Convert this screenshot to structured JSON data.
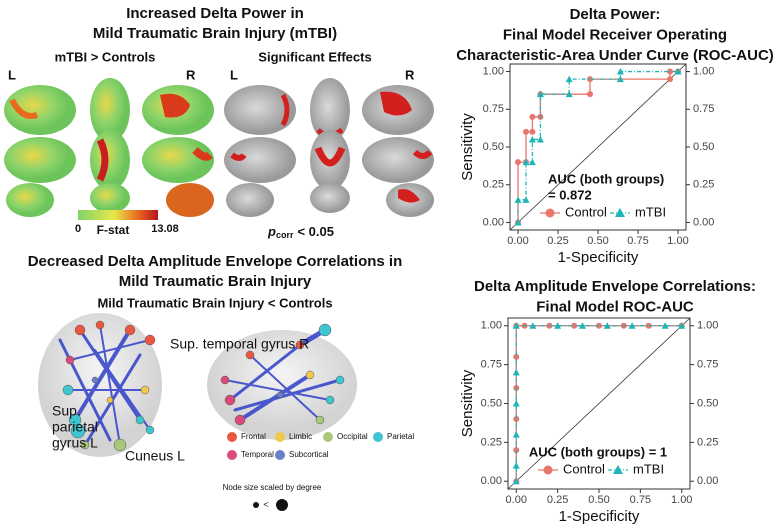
{
  "figure_a": {
    "title": [
      "Increased Delta Power in",
      "Mild Traumatic Brain Injury (mTBI)"
    ],
    "left_heading": "mTBI > Controls",
    "right_heading": "Significant Effects",
    "hemisphere_labels": [
      "L",
      "R",
      "L",
      "R"
    ],
    "colorbar": {
      "label": "F-stat",
      "min": 0,
      "max": 13.08
    },
    "threshold": {
      "symbol": "p",
      "subscript": "corr",
      "text": "< 0.05"
    }
  },
  "figure_b": {
    "title": [
      "Decreased Delta Amplitude Envelope Correlations in",
      "Mild Traumatic Brain Injury"
    ],
    "subtitle": "Mild Traumatic Brain Injury < Controls",
    "region_labels": [
      [
        "Sup. temporal gyrus R"
      ],
      [
        "Sup.",
        "parietal",
        "gyrus L"
      ],
      [
        "Cuneus L"
      ]
    ],
    "legend": [
      {
        "name": "Frontal",
        "color": "#e8573f"
      },
      {
        "name": "Limbic",
        "color": "#f0c84a"
      },
      {
        "name": "Occipital",
        "color": "#a8c97a"
      },
      {
        "name": "Parietal",
        "color": "#3fc4d0"
      },
      {
        "name": "Temporal",
        "color": "#d94a7a"
      },
      {
        "name": "Subcortical",
        "color": "#6b7fc7"
      }
    ],
    "size_note": "Node size scaled by degree",
    "size_symbol": "<"
  },
  "chart_data": [
    {
      "type": "line",
      "title": [
        "Delta Power:",
        "Final Model Receiver Operating",
        "Characteristic-Area Under Curve (ROC-AUC)"
      ],
      "xlabel": "1-Specificity",
      "ylabel": "Sensitivity",
      "annotation": [
        "AUC (both groups)",
        "= 0.872"
      ],
      "xlim": [
        -0.05,
        1.05
      ],
      "ylim": [
        -0.05,
        1.05
      ],
      "y2lim": [
        -0.05,
        1.05
      ],
      "xticks": [
        {
          "value": 0,
          "label": "0.00"
        },
        {
          "value": 0.25,
          "label": "0.25"
        },
        {
          "value": 0.5,
          "label": "0.50"
        },
        {
          "value": 0.75,
          "label": "0.75"
        },
        {
          "value": 1,
          "label": "1.00"
        }
      ],
      "yticks": [
        {
          "value": 0,
          "label": "0.00"
        },
        {
          "value": 0.25,
          "label": "0.25"
        },
        {
          "value": 0.5,
          "label": "0.50"
        },
        {
          "value": 0.75,
          "label": "0.75"
        },
        {
          "value": 1,
          "label": "1.00"
        }
      ],
      "y2ticks": [
        {
          "value": 0,
          "label": "0.00"
        },
        {
          "value": 0.25,
          "label": "0.25"
        },
        {
          "value": 0.5,
          "label": "0.50"
        },
        {
          "value": 0.75,
          "label": "0.75"
        },
        {
          "value": 1,
          "label": "1.00"
        }
      ],
      "series": [
        {
          "name": "Control",
          "color": "#e8766b",
          "marker": "circle",
          "dashed": false,
          "x": [
            0,
            0,
            0.05,
            0.05,
            0.09,
            0.09,
            0.14,
            0.14,
            0.45,
            0.45,
            0.95,
            0.95,
            1
          ],
          "values": [
            0,
            0.4,
            0.4,
            0.6,
            0.6,
            0.7,
            0.7,
            0.85,
            0.85,
            0.95,
            0.95,
            1,
            1
          ]
        },
        {
          "name": "mTBI",
          "color": "#1fb5b8",
          "marker": "triangle",
          "dashed": true,
          "x": [
            0,
            0,
            0.05,
            0.05,
            0.09,
            0.09,
            0.14,
            0.14,
            0.32,
            0.32,
            0.64,
            0.64,
            1
          ],
          "values": [
            0,
            0.15,
            0.15,
            0.4,
            0.4,
            0.55,
            0.55,
            0.85,
            0.85,
            0.95,
            0.95,
            1,
            1
          ]
        }
      ]
    },
    {
      "type": "line",
      "title": [
        "Delta Amplitude Envelope Correlations:",
        "Final Model ROC-AUC"
      ],
      "xlabel": "1-Specificity",
      "ylabel": "Sensitivity",
      "annotation": [
        "AUC (both groups) = 1"
      ],
      "xlim": [
        -0.05,
        1.05
      ],
      "ylim": [
        -0.05,
        1.05
      ],
      "y2lim": [
        -0.05,
        1.05
      ],
      "xticks": [
        {
          "value": 0,
          "label": "0.00"
        },
        {
          "value": 0.25,
          "label": "0.25"
        },
        {
          "value": 0.5,
          "label": "0.50"
        },
        {
          "value": 0.75,
          "label": "0.75"
        },
        {
          "value": 1,
          "label": "1.00"
        }
      ],
      "yticks": [
        {
          "value": 0,
          "label": "0.00"
        },
        {
          "value": 0.25,
          "label": "0.25"
        },
        {
          "value": 0.5,
          "label": "0.50"
        },
        {
          "value": 0.75,
          "label": "0.75"
        },
        {
          "value": 1,
          "label": "1.00"
        }
      ],
      "y2ticks": [
        {
          "value": 0,
          "label": "0.00"
        },
        {
          "value": 0.25,
          "label": "0.25"
        },
        {
          "value": 0.5,
          "label": "0.50"
        },
        {
          "value": 0.75,
          "label": "0.75"
        },
        {
          "value": 1,
          "label": "1.00"
        }
      ],
      "series": [
        {
          "name": "Control",
          "color": "#e8766b",
          "marker": "circle",
          "dashed": false,
          "x": [
            0,
            0,
            0,
            0,
            0,
            0,
            0.05,
            0.2,
            0.35,
            0.5,
            0.65,
            0.8,
            1
          ],
          "values": [
            0,
            0.2,
            0.4,
            0.6,
            0.8,
            1,
            1,
            1,
            1,
            1,
            1,
            1,
            1
          ]
        },
        {
          "name": "mTBI",
          "color": "#1fb5b8",
          "marker": "triangle",
          "dashed": true,
          "x": [
            0,
            0,
            0,
            0,
            0,
            0,
            0.1,
            0.25,
            0.4,
            0.55,
            0.7,
            0.9,
            1
          ],
          "values": [
            0,
            0.1,
            0.3,
            0.5,
            0.7,
            1,
            1,
            1,
            1,
            1,
            1,
            1,
            1
          ]
        }
      ]
    }
  ]
}
